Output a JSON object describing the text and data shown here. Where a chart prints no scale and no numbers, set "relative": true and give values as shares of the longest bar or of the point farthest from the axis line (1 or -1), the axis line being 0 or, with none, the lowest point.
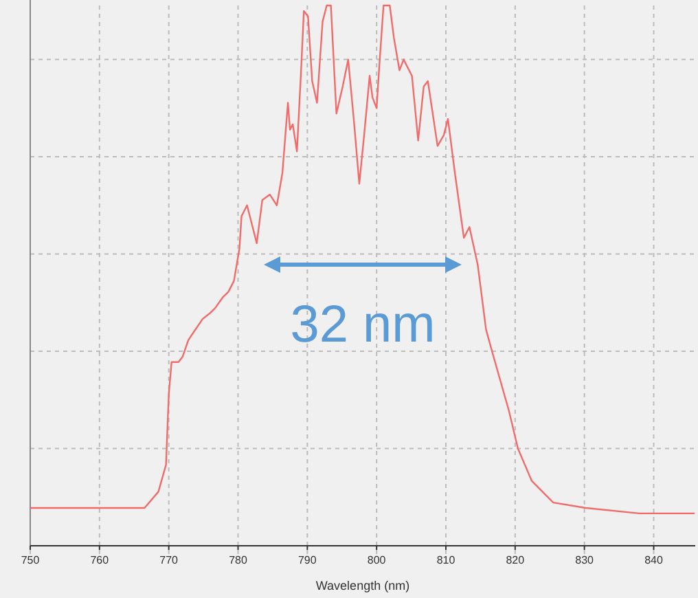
{
  "chart_data": {
    "type": "line",
    "xlabel": "Wavelength (nm)",
    "relative": true,
    "grid": true,
    "marker": "none",
    "line_style": "solid",
    "xlim": [
      750,
      846
    ],
    "xticks": [
      750,
      760,
      770,
      780,
      790,
      800,
      810,
      820,
      830,
      840
    ],
    "annotations": [
      "32 nm"
    ],
    "series": [
      {
        "color": "#f26b6b",
        "x": [
          750.0,
          754.9,
          760.7,
          766.5,
          768.5,
          769.6,
          770.0,
          770.4,
          771.4,
          772.0,
          772.8,
          773.3,
          774.9,
          775.9,
          776.7,
          777.8,
          778.6,
          779.4,
          780.2,
          780.5,
          781.3,
          782.7,
          783.5,
          784.6,
          785.6,
          786.4,
          787.2,
          787.5,
          787.9,
          788.5,
          789.1,
          789.5,
          790.1,
          790.7,
          791.4,
          792.2,
          792.8,
          793.4,
          794.2,
          795.1,
          795.9,
          796.7,
          797.5,
          798.2,
          799.0,
          799.4,
          800.0,
          800.4,
          801.0,
          801.9,
          802.5,
          803.3,
          803.9,
          805.1,
          806.0,
          806.8,
          807.4,
          808.8,
          809.7,
          810.3,
          811.3,
          812.6,
          813.4,
          814.6,
          815.8,
          817.1,
          819.1,
          820.4,
          822.4,
          825.5,
          830.2,
          837.9,
          845.9
        ],
        "values": [
          0.07,
          0.07,
          0.07,
          0.07,
          0.1,
          0.15,
          0.28,
          0.34,
          0.34,
          0.35,
          0.38,
          0.39,
          0.42,
          0.43,
          0.44,
          0.46,
          0.47,
          0.49,
          0.55,
          0.61,
          0.63,
          0.56,
          0.64,
          0.65,
          0.63,
          0.69,
          0.82,
          0.77,
          0.78,
          0.73,
          0.88,
          0.99,
          0.98,
          0.86,
          0.82,
          0.97,
          1.0,
          1.0,
          0.8,
          0.85,
          0.9,
          0.79,
          0.67,
          0.76,
          0.87,
          0.83,
          0.81,
          0.89,
          1.0,
          1.0,
          0.94,
          0.88,
          0.9,
          0.87,
          0.75,
          0.85,
          0.86,
          0.74,
          0.76,
          0.79,
          0.69,
          0.57,
          0.59,
          0.52,
          0.4,
          0.34,
          0.25,
          0.18,
          0.12,
          0.08,
          0.07,
          0.06,
          0.06
        ]
      }
    ]
  }
}
